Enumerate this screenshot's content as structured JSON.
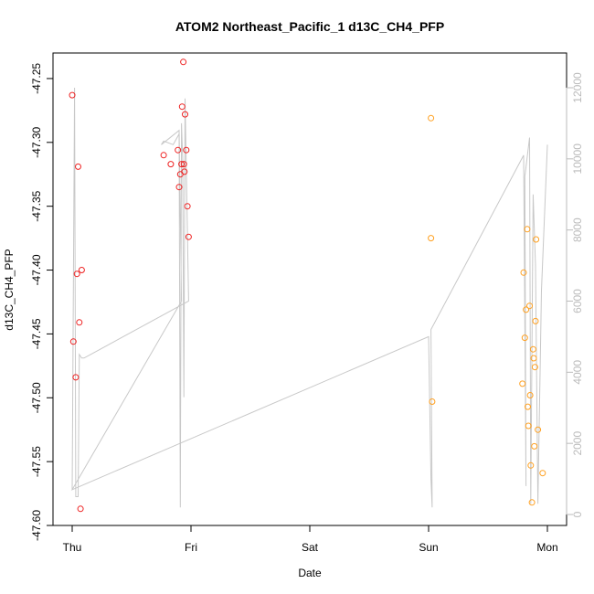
{
  "chart_data": {
    "type": "scatter",
    "title": "ATOM2 Northeast_Pacific_1 d13C_CH4_PFP",
    "xlabel": "Date",
    "ylabel": "d13C_CH4_PFP",
    "x_ticks": [
      "Thu",
      "Fri",
      "Sat",
      "Sun",
      "Mon"
    ],
    "xlim_days": [
      -0.1,
      4.1
    ],
    "ylim": [
      -47.6,
      -47.23
    ],
    "y_ticks": [
      -47.6,
      -47.55,
      -47.5,
      -47.45,
      -47.4,
      -47.35,
      -47.3,
      -47.25
    ],
    "y_tick_labels": [
      "-47.60",
      "-47.55",
      "-47.50",
      "-47.45",
      "-47.40",
      "-47.35",
      "-47.30",
      "-47.25"
    ],
    "y2lim": [
      -300,
      12500
    ],
    "y2_ticks": [
      0,
      2000,
      4000,
      6000,
      8000,
      10000,
      12000
    ],
    "y2_tick_labels": [
      "0",
      "2000",
      "4000",
      "6000",
      "8000",
      "10000",
      "12000"
    ],
    "colors": {
      "series_red": "#ee2222",
      "series_orange": "#ffa020",
      "altitude_line": "#c8c8c8",
      "axis": "#000000",
      "right_axis": "#bbbbbb"
    },
    "series": [
      {
        "color": "#ee2222",
        "points": [
          {
            "x": 0.0,
            "y": -47.263
          },
          {
            "x": 0.01,
            "y": -47.456
          },
          {
            "x": 0.03,
            "y": -47.484
          },
          {
            "x": 0.04,
            "y": -47.403
          },
          {
            "x": 0.05,
            "y": -47.319
          },
          {
            "x": 0.06,
            "y": -47.441
          },
          {
            "x": 0.07,
            "y": -47.587
          },
          {
            "x": 0.08,
            "y": -47.4
          },
          {
            "x": 0.77,
            "y": -47.31
          },
          {
            "x": 0.83,
            "y": -47.317
          },
          {
            "x": 0.89,
            "y": -47.306
          },
          {
            "x": 0.9,
            "y": -47.335
          },
          {
            "x": 0.91,
            "y": -47.325
          },
          {
            "x": 0.92,
            "y": -47.317
          },
          {
            "x": 0.925,
            "y": -47.272
          },
          {
            "x": 0.935,
            "y": -47.237
          },
          {
            "x": 0.94,
            "y": -47.317
          },
          {
            "x": 0.945,
            "y": -47.323
          },
          {
            "x": 0.95,
            "y": -47.278
          },
          {
            "x": 0.96,
            "y": -47.306
          },
          {
            "x": 0.97,
            "y": -47.35
          },
          {
            "x": 0.98,
            "y": -47.374
          }
        ]
      },
      {
        "color": "#ffa020",
        "points": [
          {
            "x": 3.02,
            "y": -47.281
          },
          {
            "x": 3.02,
            "y": -47.375
          },
          {
            "x": 3.03,
            "y": -47.503
          },
          {
            "x": 3.79,
            "y": -47.489
          },
          {
            "x": 3.8,
            "y": -47.402
          },
          {
            "x": 3.81,
            "y": -47.453
          },
          {
            "x": 3.82,
            "y": -47.431
          },
          {
            "x": 3.83,
            "y": -47.368
          },
          {
            "x": 3.835,
            "y": -47.507
          },
          {
            "x": 3.84,
            "y": -47.522
          },
          {
            "x": 3.85,
            "y": -47.428
          },
          {
            "x": 3.855,
            "y": -47.498
          },
          {
            "x": 3.86,
            "y": -47.553
          },
          {
            "x": 3.87,
            "y": -47.582
          },
          {
            "x": 3.88,
            "y": -47.462
          },
          {
            "x": 3.885,
            "y": -47.469
          },
          {
            "x": 3.89,
            "y": -47.538
          },
          {
            "x": 3.895,
            "y": -47.476
          },
          {
            "x": 3.9,
            "y": -47.44
          },
          {
            "x": 3.905,
            "y": -47.376
          },
          {
            "x": 3.92,
            "y": -47.525
          },
          {
            "x": 3.96,
            "y": -47.559
          }
        ]
      }
    ],
    "altitude_line": [
      {
        "x": 0.0,
        "y": 700
      },
      {
        "x": 0.02,
        "y": 12000
      },
      {
        "x": 0.03,
        "y": 500
      },
      {
        "x": 0.05,
        "y": 500
      },
      {
        "x": 0.06,
        "y": 4500
      },
      {
        "x": 0.08,
        "y": 4400
      },
      {
        "x": 0.1,
        "y": 4400
      },
      {
        "x": 0.98,
        "y": 6000
      },
      {
        "x": 0.95,
        "y": 11700
      },
      {
        "x": 0.94,
        "y": 3300
      },
      {
        "x": 0.93,
        "y": 10000
      },
      {
        "x": 0.92,
        "y": 11000
      },
      {
        "x": 0.91,
        "y": 200
      },
      {
        "x": 0.9,
        "y": 10700
      },
      {
        "x": 0.85,
        "y": 10400
      },
      {
        "x": 0.77,
        "y": 10500
      },
      {
        "x": 0.75,
        "y": 10400
      },
      {
        "x": 0.9,
        "y": 10800
      },
      {
        "x": 0.92,
        "y": 6000
      },
      {
        "x": 0.0,
        "y": 700
      },
      {
        "x": 3.0,
        "y": 5000
      },
      {
        "x": 3.02,
        "y": 1000
      },
      {
        "x": 3.03,
        "y": 200
      },
      {
        "x": 3.02,
        "y": 5200
      },
      {
        "x": 3.8,
        "y": 10100
      },
      {
        "x": 3.82,
        "y": 800
      },
      {
        "x": 3.81,
        "y": 9500
      },
      {
        "x": 3.85,
        "y": 10600
      },
      {
        "x": 3.86,
        "y": 300
      },
      {
        "x": 3.88,
        "y": 9000
      },
      {
        "x": 3.9,
        "y": 7000
      },
      {
        "x": 3.92,
        "y": 300
      },
      {
        "x": 3.95,
        "y": 6300
      },
      {
        "x": 4.0,
        "y": 10400
      }
    ]
  }
}
